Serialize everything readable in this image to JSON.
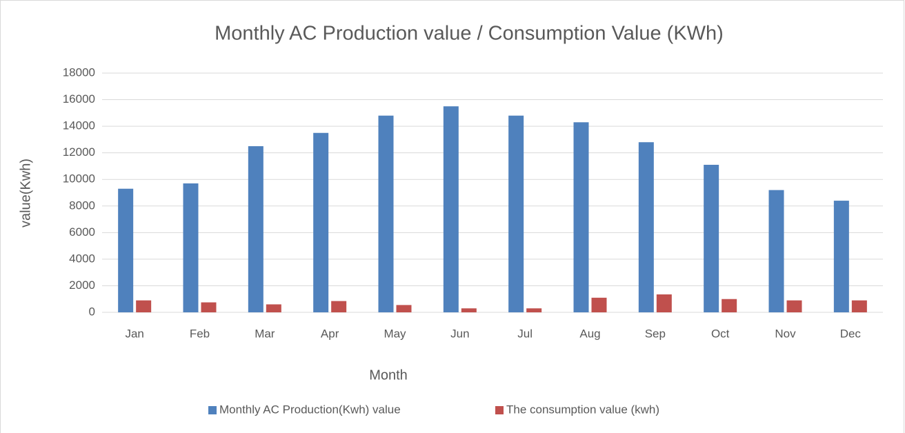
{
  "chart_data": {
    "type": "bar",
    "title": "Monthly AC Production value / Consumption Value (KWh)",
    "x_label": "Month",
    "y_label": "value(Kwh)",
    "categories": [
      "Jan",
      "Feb",
      "Mar",
      "Apr",
      "May",
      "Jun",
      "Jul",
      "Aug",
      "Sep",
      "Oct",
      "Nov",
      "Dec"
    ],
    "series": [
      {
        "name": "Monthly AC Production(Kwh) value",
        "color": "#4f81bd",
        "values": [
          9300,
          9700,
          12500,
          13500,
          14800,
          15500,
          14800,
          14300,
          12800,
          11100,
          9200,
          8400
        ]
      },
      {
        "name": "The consumption value (kwh)",
        "color": "#c0504d",
        "values": [
          900,
          750,
          600,
          850,
          550,
          300,
          300,
          1100,
          1350,
          1000,
          900,
          900
        ]
      }
    ],
    "ylim": [
      0,
      18000
    ],
    "yticks": [
      0,
      2000,
      4000,
      6000,
      8000,
      10000,
      12000,
      14000,
      16000,
      18000
    ],
    "grid": true,
    "legend": "bottom"
  }
}
